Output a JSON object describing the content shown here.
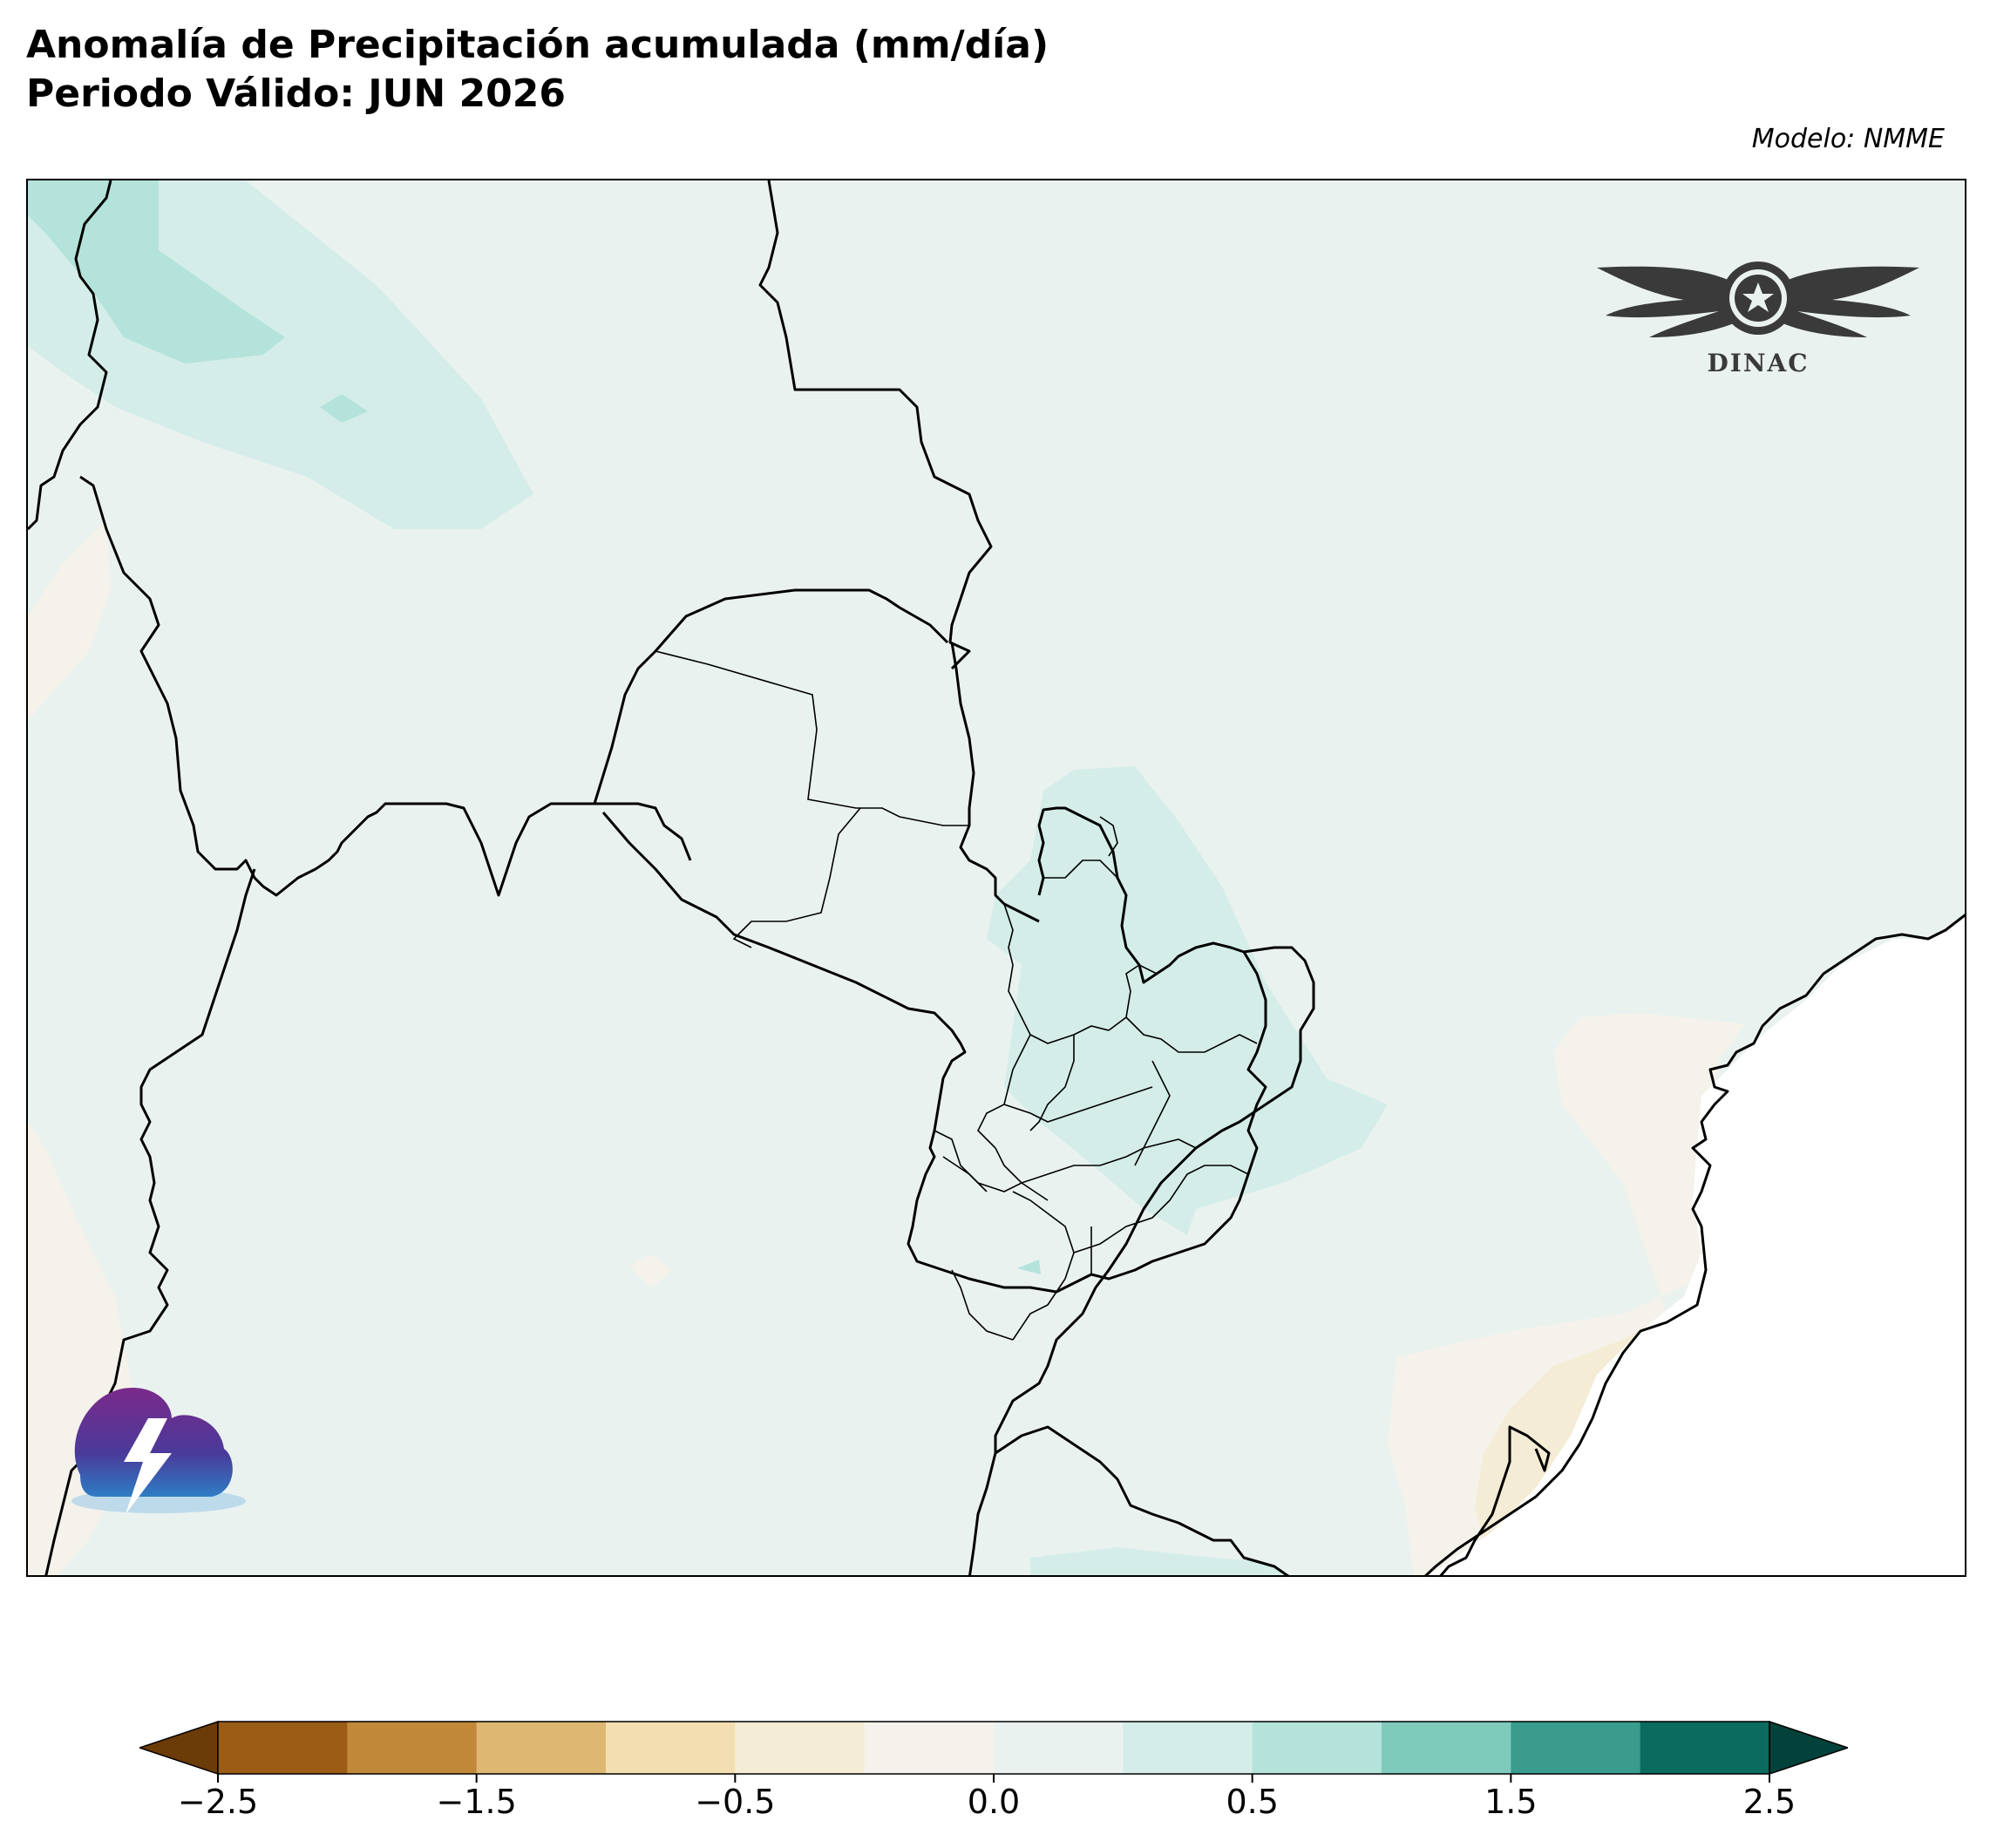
{
  "title": {
    "line1": "Anomalía de Precipitación acumulada (mm/día)",
    "line2": "Periodo Válido: JUN 2026"
  },
  "model_label": "Modelo: NMME",
  "logo_text": "DINAC",
  "icons": {
    "agency_logo": "winged-emblem-icon",
    "storm_logo": "storm-cloud-icon"
  },
  "colorbar": {
    "ticks": [
      "−2.5",
      "−1.5",
      "−0.5",
      "0.0",
      "0.5",
      "1.5",
      "2.5"
    ],
    "levels": [
      -2.5,
      -2.0,
      -1.5,
      -1.0,
      -0.5,
      -0.25,
      0.0,
      0.25,
      0.5,
      1.0,
      1.5,
      2.0,
      2.5
    ],
    "colors": [
      "#6b3b08",
      "#9b5d16",
      "#c2883a",
      "#deb873",
      "#f2deb0",
      "#f5ecd6",
      "#f4f2ea",
      "#eaf2f0",
      "#d4ede8",
      "#b3e3da",
      "#7ecbbc",
      "#3a9c8d",
      "#0a6b5e",
      "#02423a"
    ],
    "extend": "both"
  },
  "colors": {
    "land_background": "#eaf2f0",
    "ocean": "#ffffff",
    "positive_light": "#d4ede8",
    "positive_medium": "#b3e3da",
    "negative_light": "#f4f2ea",
    "negative_medium": "#f5ecd6",
    "border": "#000000"
  }
}
